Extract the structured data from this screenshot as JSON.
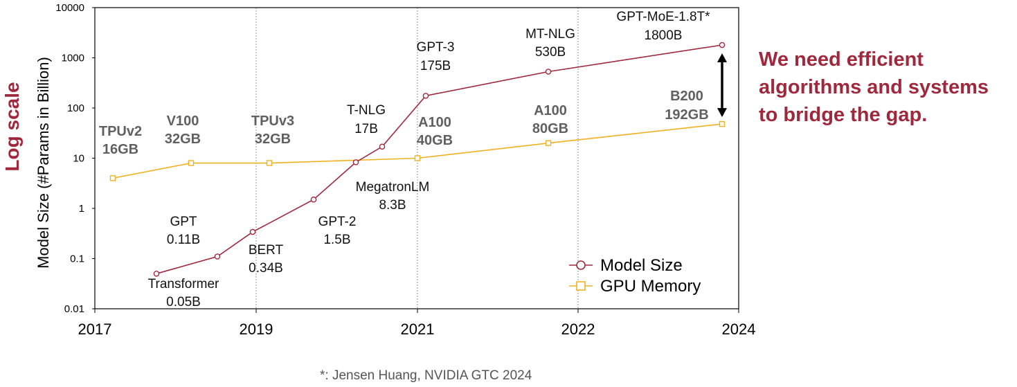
{
  "chart_data": {
    "type": "line",
    "y_scale": "log",
    "ylabel": "Model Size (#Params in Billion)",
    "ylabel_note": "Log scale",
    "ylim": [
      0.01,
      10000
    ],
    "yticks": [
      "10000",
      "1000",
      "100",
      "10",
      "1",
      "0.1",
      "0.01"
    ],
    "yvals": [
      10000,
      1000,
      100,
      10,
      1,
      0.1,
      0.01
    ],
    "xlim": [
      2017,
      2024
    ],
    "xticks": [
      "2017",
      "2019",
      "2021",
      "2022",
      "2024"
    ],
    "legend_position": "bottom-right",
    "series": [
      {
        "name": "Model Size",
        "color": "#A0283C",
        "marker": "circle",
        "points": [
          {
            "name": "Transformer",
            "value_label": "0.05B",
            "y": 0.05
          },
          {
            "name": "GPT",
            "value_label": "0.11B",
            "y": 0.11
          },
          {
            "name": "BERT",
            "value_label": "0.34B",
            "y": 0.34
          },
          {
            "name": "GPT-2",
            "value_label": "1.5B",
            "y": 1.5
          },
          {
            "name": "MegatronLM",
            "value_label": "8.3B",
            "y": 8.3
          },
          {
            "name": "T-NLG",
            "value_label": "17B",
            "y": 17
          },
          {
            "name": "GPT-3",
            "value_label": "175B",
            "y": 175
          },
          {
            "name": "MT-NLG",
            "value_label": "530B",
            "y": 530
          },
          {
            "name": "GPT-MoE-1.8T*",
            "value_label": "1800B",
            "y": 1800
          }
        ]
      },
      {
        "name": "GPU Memory",
        "color": "#F0B020",
        "marker": "square",
        "points": [
          {
            "name": "TPUv2",
            "value_label": "16GB",
            "y": 4
          },
          {
            "name": "V100",
            "value_label": "32GB",
            "y": 8
          },
          {
            "name": "TPUv3",
            "value_label": "32GB",
            "y": 8
          },
          {
            "name": "A100",
            "value_label": "40GB",
            "y": 10
          },
          {
            "name": "A100",
            "value_label": "80GB",
            "y": 20
          },
          {
            "name": "B200",
            "value_label": "192GB",
            "y": 48
          }
        ]
      }
    ]
  },
  "message": {
    "line1": "We need efficient",
    "line2": "algorithms and systems",
    "line3": "to bridge the gap."
  },
  "footnote": "*: Jensen Huang, NVIDIA GTC 2024",
  "colors": {
    "model": "#A0283C",
    "gpu": "#F0B020",
    "accent_text": "#A0283C",
    "gap_arrow": "#000000"
  }
}
